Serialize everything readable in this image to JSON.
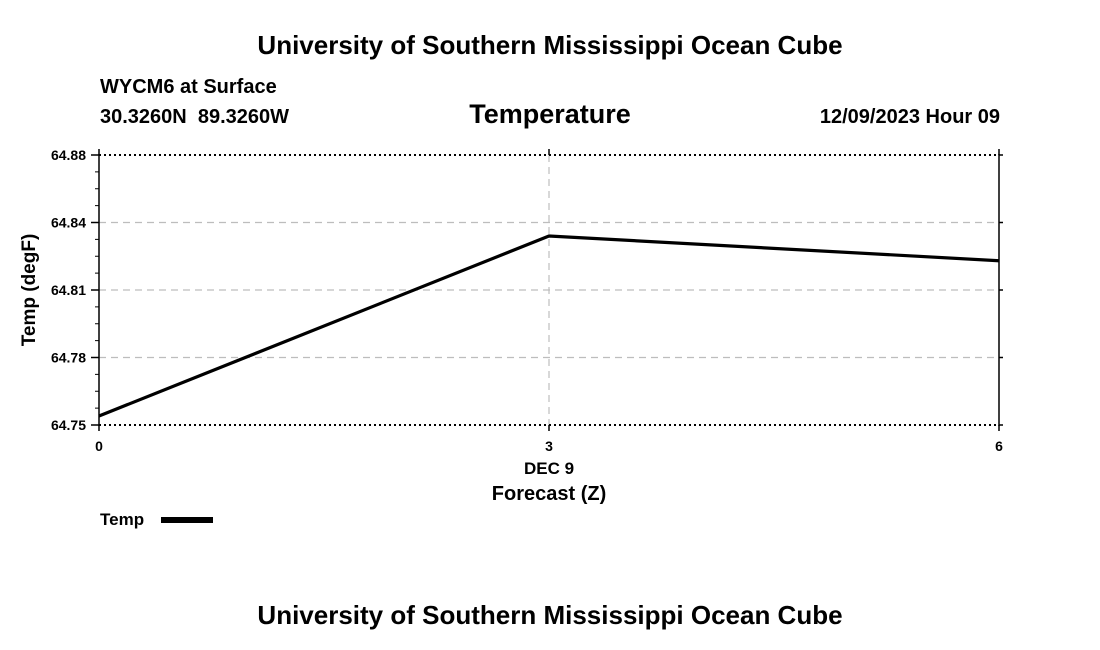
{
  "header": {
    "title": "University of Southern Mississippi Ocean Cube",
    "station": "WYCM6 at Surface",
    "coords": "30.3260N  89.3260W",
    "datetime": "12/09/2023 Hour 09"
  },
  "footer": {
    "title": "University of Southern Mississippi Ocean Cube"
  },
  "chart_data": {
    "type": "line",
    "title": "Temperature",
    "xlabel": "Forecast (Z)",
    "ylabel": "Temp (degF)",
    "x": [
      0,
      3,
      6
    ],
    "x_ticks": [
      "0",
      "3",
      "6"
    ],
    "x_date_label": "DEC 9",
    "y_ticks": [
      "64.75",
      "64.78",
      "64.81",
      "64.84",
      "64.88"
    ],
    "xlim": [
      0,
      6
    ],
    "ylim": [
      64.75,
      64.87
    ],
    "grid": true,
    "legend_position": "bottom-left",
    "series": [
      {
        "name": "Temp",
        "color": "#000000",
        "values": [
          64.754,
          64.834,
          64.823
        ]
      }
    ]
  }
}
